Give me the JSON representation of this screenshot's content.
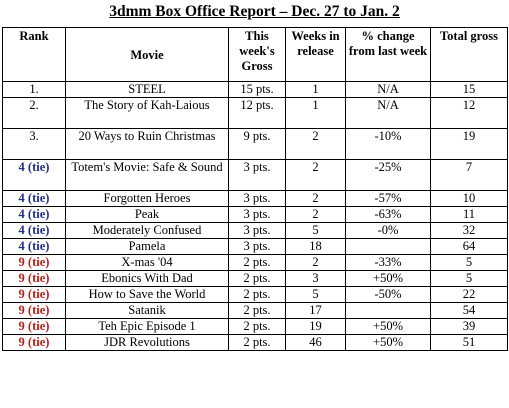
{
  "report": {
    "title": "3dmm Box Office Report – Dec. 27 to Jan. 2"
  },
  "columns": {
    "rank": "Rank",
    "movie": "Movie",
    "gross": "This week's Gross",
    "weeks": "Weeks in release",
    "change": "% change from last week",
    "total": "Total gross"
  },
  "colors": {
    "tie_4": "#1f2d8c",
    "tie_9": "#b51f1f"
  },
  "rows": [
    {
      "rank": "1.",
      "style": "plain",
      "movie": "STEEL",
      "gross": "15 pts.",
      "weeks": "1",
      "change": "N/A",
      "total": "15",
      "tall": false
    },
    {
      "rank": "2.",
      "style": "plain",
      "movie": "The Story of Kah-Laious",
      "gross": "12 pts.",
      "weeks": "1",
      "change": "N/A",
      "total": "12",
      "tall": true
    },
    {
      "rank": "3.",
      "style": "plain",
      "movie": "20 Ways to Ruin Christmas",
      "gross": "9 pts.",
      "weeks": "2",
      "change": "-10%",
      "total": "19",
      "tall": true
    },
    {
      "rank": "4 (tie)",
      "style": "blue",
      "movie": "Totem's Movie: Safe & Sound",
      "gross": "3 pts.",
      "weeks": "2",
      "change": "-25%",
      "total": "7",
      "tall": true
    },
    {
      "rank": "4 (tie)",
      "style": "blue",
      "movie": "Forgotten Heroes",
      "gross": "3 pts.",
      "weeks": "2",
      "change": "-57%",
      "total": "10",
      "tall": false
    },
    {
      "rank": "4 (tie)",
      "style": "blue",
      "movie": "Peak",
      "gross": "3 pts.",
      "weeks": "2",
      "change": "-63%",
      "total": "11",
      "tall": false
    },
    {
      "rank": "4 (tie)",
      "style": "blue",
      "movie": "Moderately Confused",
      "gross": "3 pts.",
      "weeks": "5",
      "change": "-0%",
      "total": "32",
      "tall": false
    },
    {
      "rank": "4 (tie)",
      "style": "blue",
      "movie": "Pamela",
      "gross": "3 pts.",
      "weeks": "18",
      "change": "",
      "total": "64",
      "tall": false
    },
    {
      "rank": "9 (tie)",
      "style": "red",
      "movie": "X-mas '04",
      "gross": "2 pts.",
      "weeks": "2",
      "change": "-33%",
      "total": "5",
      "tall": false
    },
    {
      "rank": "9 (tie)",
      "style": "red",
      "movie": "Ebonics With Dad",
      "gross": "2 pts.",
      "weeks": "3",
      "change": "+50%",
      "total": "5",
      "tall": false
    },
    {
      "rank": "9 (tie)",
      "style": "red",
      "movie": "How to Save the World",
      "gross": "2 pts.",
      "weeks": "5",
      "change": "-50%",
      "total": "22",
      "tall": false
    },
    {
      "rank": "9 (tie)",
      "style": "red",
      "movie": "Satanik",
      "gross": "2 pts.",
      "weeks": "17",
      "change": "",
      "total": "54",
      "tall": false
    },
    {
      "rank": "9 (tie)",
      "style": "red",
      "movie": "Teh Epic Episode 1",
      "gross": "2 pts.",
      "weeks": "19",
      "change": "+50%",
      "total": "39",
      "tall": false
    },
    {
      "rank": "9 (tie)",
      "style": "red",
      "movie": "JDR Revolutions",
      "gross": "2 pts.",
      "weeks": "46",
      "change": "+50%",
      "total": "51",
      "tall": false
    }
  ]
}
